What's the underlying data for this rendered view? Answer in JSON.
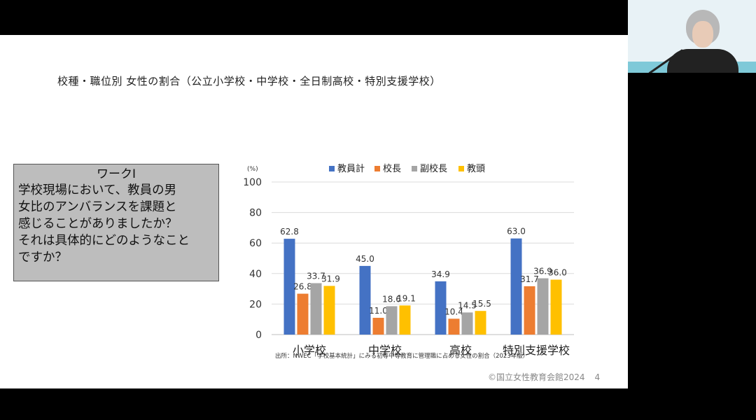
{
  "slide": {
    "title": "校種・職位別 女性の割合（公立小学校・中学校・全日制高校・特別支援学校）",
    "work": {
      "title": "ワークⅠ",
      "body": "学校現場において、教員の男\n女比のアンバランスを課題と\n感じることがありましたか？\nそれは具体的にどのようなこと\nですか？"
    },
    "source": "出所：NWEC「学校基本統計」にみる初等中等教育に管理職に占める女性の割合（2023年版）",
    "footer": "©国立女性教育会館2024",
    "page": "4"
  },
  "chart_data": {
    "type": "bar",
    "unit_label": "(%)",
    "categories": [
      "小学校",
      "中学校",
      "高校",
      "特別支援学校"
    ],
    "ylim": [
      0,
      100
    ],
    "yticks": [
      0,
      20,
      40,
      60,
      80,
      100
    ],
    "legend_position": "top",
    "series": [
      {
        "name": "教員計",
        "color": "#4472c4",
        "values": [
          62.8,
          45.0,
          34.9,
          63.0
        ]
      },
      {
        "name": "校長",
        "color": "#ed7d31",
        "values": [
          26.8,
          11.0,
          10.4,
          31.7
        ]
      },
      {
        "name": "副校長",
        "color": "#a5a5a5",
        "values": [
          33.7,
          18.6,
          14.5,
          36.9
        ]
      },
      {
        "name": "教頭",
        "color": "#ffc000",
        "values": [
          31.9,
          19.1,
          15.5,
          36.0
        ]
      }
    ],
    "data_labels": [
      [
        "62.8",
        "26.8",
        "33.7",
        "31.9"
      ],
      [
        "45.0",
        "11.0",
        "18.6",
        "19.1"
      ],
      [
        "34.9",
        "10.4",
        "14.5",
        "15.5"
      ],
      [
        "63.0",
        "31.7",
        "36.9",
        "36.0"
      ]
    ]
  }
}
